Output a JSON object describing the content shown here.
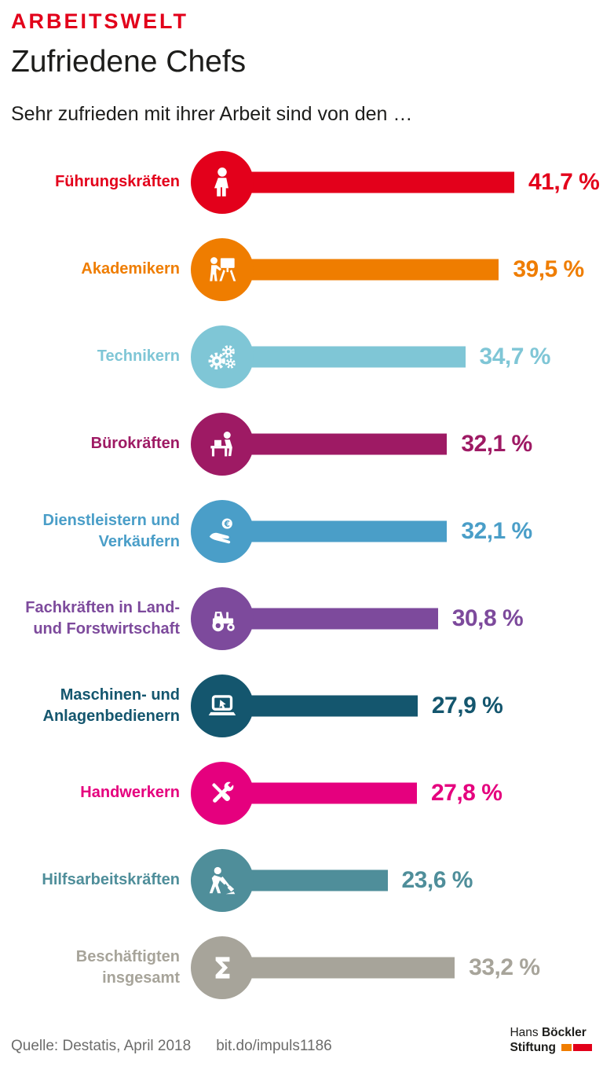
{
  "header": {
    "kicker": "ARBEITSWELT",
    "title": "Zufriedene Chefs",
    "subtitle": "Sehr zufrieden mit ihrer Arbeit sind von den …"
  },
  "chart_data": {
    "type": "bar",
    "orientation": "horizontal",
    "unit": "%",
    "value_range": [
      0,
      45
    ],
    "legend": "none",
    "rows": [
      {
        "label": "Führungskräften",
        "lines": [
          "Führungskräften"
        ],
        "value": 41.7,
        "display_value": "41,7 %",
        "color": "#e3001b",
        "icon": "person-icon"
      },
      {
        "label": "Akademikern",
        "lines": [
          "Akademikern"
        ],
        "value": 39.5,
        "display_value": "39,5 %",
        "color": "#ef7d00",
        "icon": "lecturer-board-icon"
      },
      {
        "label": "Technikern",
        "lines": [
          "Technikern"
        ],
        "value": 34.7,
        "display_value": "34,7 %",
        "color": "#7fc6d6",
        "icon": "gears-icon"
      },
      {
        "label": "Bürokräften",
        "lines": [
          "Bürokräften"
        ],
        "value": 32.1,
        "display_value": "32,1 %",
        "color": "#9e1a64",
        "icon": "office-desk-icon"
      },
      {
        "label": "Dienstleistern und Verkäufern",
        "lines": [
          "Dienstleistern und",
          "Verkäufern"
        ],
        "value": 32.1,
        "display_value": "32,1 %",
        "color": "#4a9ec8",
        "icon": "hand-coin-icon"
      },
      {
        "label": "Fachkräften in Land- und Forstwirtschaft",
        "lines": [
          "Fachkräften in Land-",
          "und Forstwirtschaft"
        ],
        "value": 30.8,
        "display_value": "30,8 %",
        "color": "#7d4a9c",
        "icon": "tractor-icon"
      },
      {
        "label": "Maschinen- und Anlagenbedienern",
        "lines": [
          "Maschinen- und",
          "Anlagenbedienern"
        ],
        "value": 27.9,
        "display_value": "27,9 %",
        "color": "#14566e",
        "icon": "laptop-icon"
      },
      {
        "label": "Handwerkern",
        "lines": [
          "Handwerkern"
        ],
        "value": 27.8,
        "display_value": "27,8 %",
        "color": "#e5007e",
        "icon": "tools-icon"
      },
      {
        "label": "Hilfsarbeitskräften",
        "lines": [
          "Hilfsarbeitskräften"
        ],
        "value": 23.6,
        "display_value": "23,6 %",
        "color": "#4f8e9a",
        "icon": "construction-worker-icon"
      },
      {
        "label": "Beschäftigten insgesamt",
        "lines": [
          "Beschäftigten",
          "insgesamt"
        ],
        "value": 33.2,
        "display_value": "33,2 %",
        "color": "#a7a49a",
        "icon": "sum-icon"
      }
    ]
  },
  "footer": {
    "source": "Quelle: Destatis, April 2018",
    "link": "bit.do/impuls1186",
    "logo": {
      "name_regular": "Hans",
      "name_bold": "Böckler",
      "line2": "Stiftung"
    }
  }
}
